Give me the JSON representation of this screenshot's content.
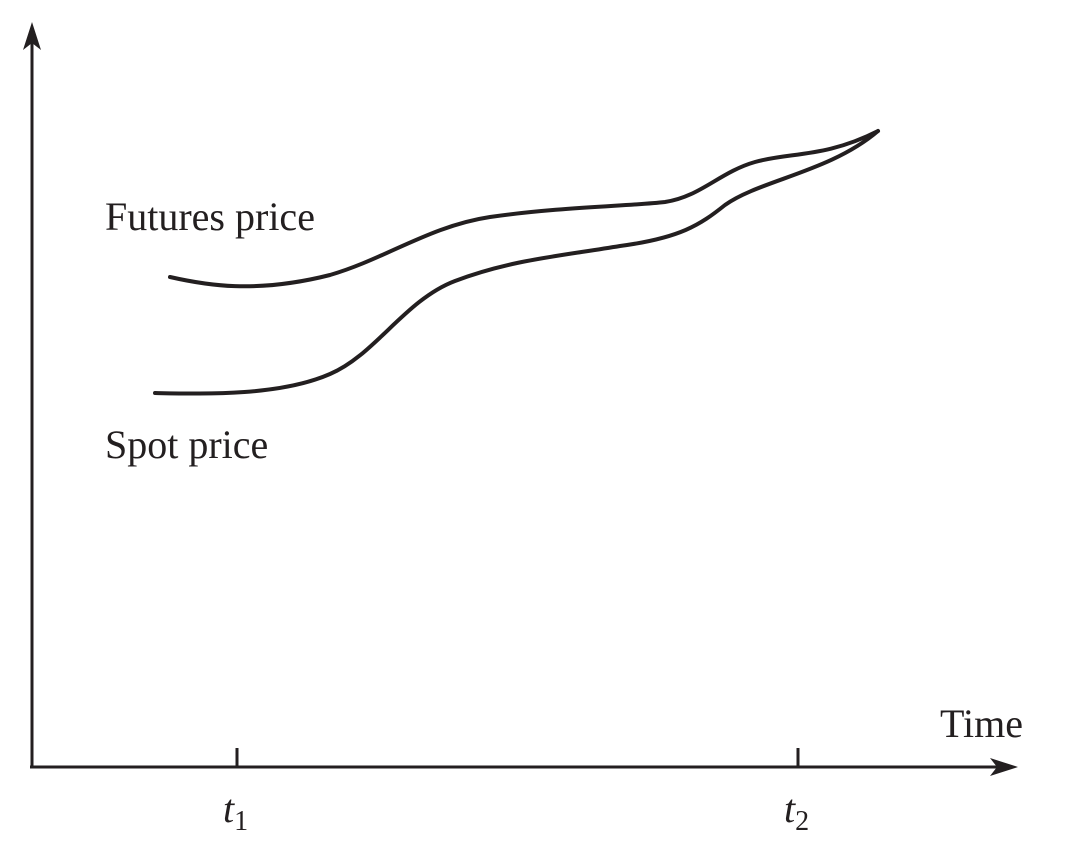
{
  "chart_data": {
    "type": "line",
    "title": "",
    "xlabel": "Time",
    "ylabel": "",
    "x_ticks": [
      {
        "x": 1,
        "label": "t",
        "subscript": "1"
      },
      {
        "x": 2,
        "label": "t",
        "subscript": "2"
      }
    ],
    "xlim": [
      0,
      2.4
    ],
    "ylim": [
      0,
      10
    ],
    "grid": false,
    "legend": "none",
    "series": [
      {
        "name": "Futures price",
        "x": [
          0.64,
          1.0,
          1.3,
          1.6,
          2.0,
          2.2,
          2.4,
          2.66
        ],
        "y": [
          6.8,
          6.6,
          7.1,
          7.6,
          7.9,
          8.1,
          8.6,
          8.9
        ]
      },
      {
        "name": "Spot price",
        "x": [
          0.6,
          1.0,
          1.3,
          1.6,
          2.0,
          2.2,
          2.4,
          2.66
        ],
        "y": [
          5.3,
          5.3,
          5.8,
          6.9,
          7.4,
          7.6,
          8.3,
          8.9
        ]
      }
    ]
  }
}
